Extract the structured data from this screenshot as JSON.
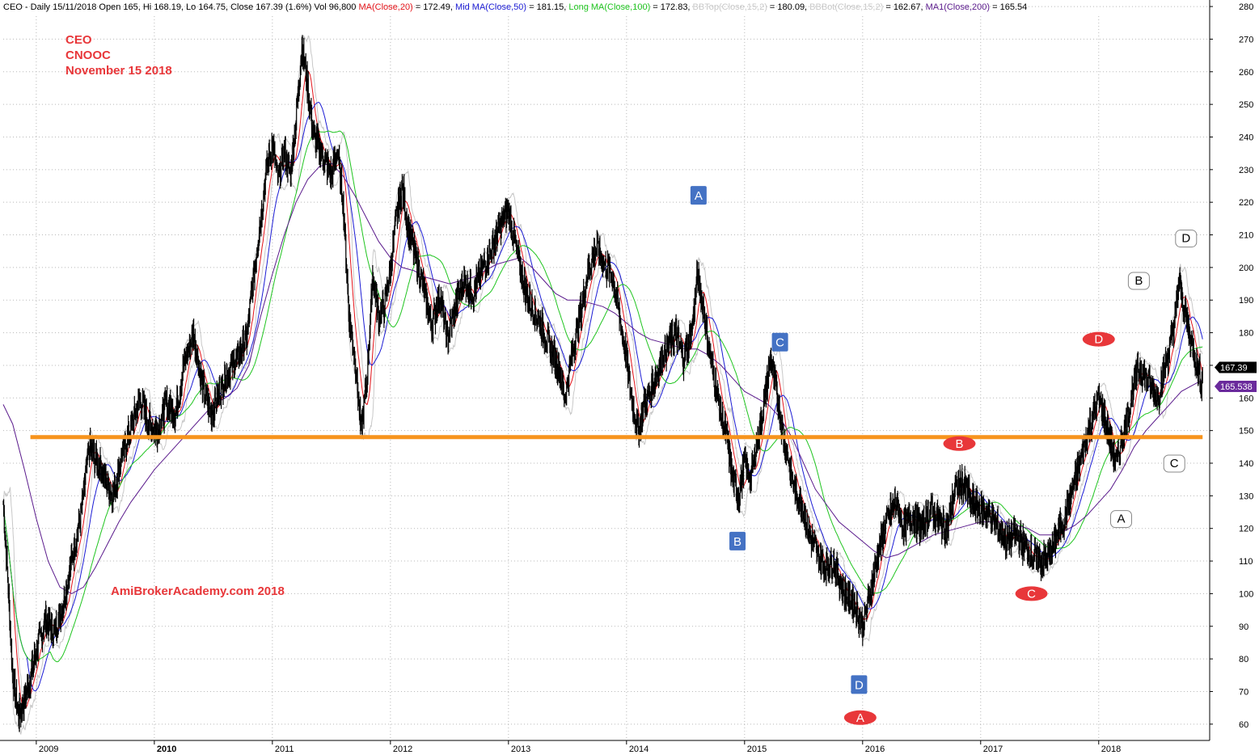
{
  "chart_data": {
    "type": "candlestick",
    "header": {
      "prefix": "CEO - Daily 15/11/2018 Open 165, Hi 168.19, Lo 164.75, Close 167.39 (1.6%) Vol 96,800 ",
      "ma20_label": "MA(Close,20)",
      "ma20_value": " = 172.49, ",
      "ma50_label": "Mid MA(Close,50)",
      "ma50_value": " = 181.15, ",
      "ma100_label": "Long MA(Close,100)",
      "ma100_value": " = 172.83, ",
      "bbtop_label": "BBTop(Close,15,2)",
      "bbtop_value": " = 180.09, ",
      "bbbot_label": "BBBot(Close,15,2)",
      "bbbot_value": " = 162.67, ",
      "ma200_label": "MA1(Close,200)",
      "ma200_value": " = 165.54"
    },
    "annotations": {
      "symbol": "CEO",
      "company": "CNOOC",
      "date": "November 15 2018",
      "watermark": "AmiBrokerAcademy.com  2018"
    },
    "ohlc": {
      "open": 165,
      "high": 168.19,
      "low": 164.75,
      "close": 167.39,
      "change_pct": 1.6,
      "volume": 96800
    },
    "y_axis": {
      "min": 55,
      "max": 282,
      "ticks": [
        60,
        70,
        80,
        90,
        100,
        110,
        120,
        130,
        140,
        150,
        160,
        170,
        180,
        190,
        200,
        210,
        220,
        230,
        240,
        250,
        260,
        270,
        280
      ]
    },
    "x_axis": {
      "start": 2008.72,
      "end": 2018.94,
      "years": [
        {
          "label": "2009",
          "value": 2009.0
        },
        {
          "label": "2010",
          "value": 2010.0
        },
        {
          "label": "2011",
          "value": 2011.0
        },
        {
          "label": "2012",
          "value": 2012.0
        },
        {
          "label": "2013",
          "value": 2013.0
        },
        {
          "label": "2014",
          "value": 2014.0
        },
        {
          "label": "2015",
          "value": 2015.0
        },
        {
          "label": "2016",
          "value": 2016.0
        },
        {
          "label": "2017",
          "value": 2017.0
        },
        {
          "label": "2018",
          "value": 2018.0
        }
      ]
    },
    "price_path": [
      [
        2008.72,
        128
      ],
      [
        2008.75,
        110
      ],
      [
        2008.8,
        75
      ],
      [
        2008.85,
        62
      ],
      [
        2008.92,
        70
      ],
      [
        2009.0,
        82
      ],
      [
        2009.08,
        92
      ],
      [
        2009.15,
        88
      ],
      [
        2009.22,
        96
      ],
      [
        2009.3,
        110
      ],
      [
        2009.38,
        125
      ],
      [
        2009.45,
        145
      ],
      [
        2009.55,
        138
      ],
      [
        2009.65,
        130
      ],
      [
        2009.72,
        142
      ],
      [
        2009.8,
        150
      ],
      [
        2009.88,
        160
      ],
      [
        2009.95,
        152
      ],
      [
        2010.03,
        150
      ],
      [
        2010.1,
        158
      ],
      [
        2010.18,
        155
      ],
      [
        2010.25,
        170
      ],
      [
        2010.33,
        180
      ],
      [
        2010.4,
        165
      ],
      [
        2010.48,
        155
      ],
      [
        2010.55,
        162
      ],
      [
        2010.62,
        168
      ],
      [
        2010.7,
        172
      ],
      [
        2010.78,
        178
      ],
      [
        2010.85,
        200
      ],
      [
        2010.9,
        215
      ],
      [
        2010.95,
        230
      ],
      [
        2011.0,
        238
      ],
      [
        2011.05,
        226
      ],
      [
        2011.1,
        235
      ],
      [
        2011.15,
        228
      ],
      [
        2011.2,
        245
      ],
      [
        2011.25,
        268
      ],
      [
        2011.3,
        255
      ],
      [
        2011.35,
        240
      ],
      [
        2011.42,
        235
      ],
      [
        2011.5,
        228
      ],
      [
        2011.55,
        236
      ],
      [
        2011.6,
        220
      ],
      [
        2011.65,
        185
      ],
      [
        2011.7,
        172
      ],
      [
        2011.75,
        150
      ],
      [
        2011.8,
        165
      ],
      [
        2011.85,
        198
      ],
      [
        2011.9,
        185
      ],
      [
        2011.95,
        188
      ],
      [
        2012.0,
        200
      ],
      [
        2012.05,
        215
      ],
      [
        2012.1,
        225
      ],
      [
        2012.15,
        212
      ],
      [
        2012.2,
        205
      ],
      [
        2012.25,
        198
      ],
      [
        2012.3,
        190
      ],
      [
        2012.35,
        182
      ],
      [
        2012.42,
        192
      ],
      [
        2012.48,
        178
      ],
      [
        2012.55,
        188
      ],
      [
        2012.62,
        196
      ],
      [
        2012.7,
        192
      ],
      [
        2012.78,
        200
      ],
      [
        2012.85,
        205
      ],
      [
        2012.92,
        212
      ],
      [
        2012.96,
        215
      ],
      [
        2013.0,
        218
      ],
      [
        2013.05,
        208
      ],
      [
        2013.1,
        200
      ],
      [
        2013.15,
        192
      ],
      [
        2013.2,
        188
      ],
      [
        2013.28,
        182
      ],
      [
        2013.35,
        175
      ],
      [
        2013.42,
        170
      ],
      [
        2013.48,
        160
      ],
      [
        2013.55,
        176
      ],
      [
        2013.62,
        188
      ],
      [
        2013.68,
        200
      ],
      [
        2013.75,
        206
      ],
      [
        2013.82,
        200
      ],
      [
        2013.88,
        198
      ],
      [
        2013.94,
        185
      ],
      [
        2014.0,
        172
      ],
      [
        2014.05,
        158
      ],
      [
        2014.1,
        150
      ],
      [
        2014.15,
        158
      ],
      [
        2014.2,
        162
      ],
      [
        2014.28,
        170
      ],
      [
        2014.35,
        176
      ],
      [
        2014.42,
        180
      ],
      [
        2014.48,
        172
      ],
      [
        2014.55,
        180
      ],
      [
        2014.6,
        197
      ],
      [
        2014.65,
        188
      ],
      [
        2014.7,
        175
      ],
      [
        2014.75,
        165
      ],
      [
        2014.8,
        155
      ],
      [
        2014.85,
        148
      ],
      [
        2014.9,
        135
      ],
      [
        2014.95,
        130
      ],
      [
        2015.0,
        140
      ],
      [
        2015.05,
        135
      ],
      [
        2015.1,
        145
      ],
      [
        2015.15,
        155
      ],
      [
        2015.22,
        172
      ],
      [
        2015.28,
        160
      ],
      [
        2015.33,
        148
      ],
      [
        2015.38,
        140
      ],
      [
        2015.42,
        132
      ],
      [
        2015.48,
        128
      ],
      [
        2015.55,
        118
      ],
      [
        2015.62,
        112
      ],
      [
        2015.68,
        108
      ],
      [
        2015.75,
        110
      ],
      [
        2015.8,
        105
      ],
      [
        2015.85,
        100
      ],
      [
        2015.9,
        98
      ],
      [
        2015.95,
        95
      ],
      [
        2016.0,
        90
      ],
      [
        2016.05,
        98
      ],
      [
        2016.12,
        110
      ],
      [
        2016.2,
        122
      ],
      [
        2016.28,
        128
      ],
      [
        2016.35,
        120
      ],
      [
        2016.42,
        124
      ],
      [
        2016.5,
        120
      ],
      [
        2016.58,
        126
      ],
      [
        2016.65,
        122
      ],
      [
        2016.72,
        120
      ],
      [
        2016.78,
        132
      ],
      [
        2016.85,
        134
      ],
      [
        2016.92,
        128
      ],
      [
        2017.0,
        126
      ],
      [
        2017.08,
        124
      ],
      [
        2017.15,
        120
      ],
      [
        2017.22,
        116
      ],
      [
        2017.3,
        118
      ],
      [
        2017.38,
        114
      ],
      [
        2017.45,
        111
      ],
      [
        2017.52,
        110
      ],
      [
        2017.58,
        112
      ],
      [
        2017.65,
        118
      ],
      [
        2017.72,
        124
      ],
      [
        2017.78,
        132
      ],
      [
        2017.84,
        140
      ],
      [
        2017.9,
        148
      ],
      [
        2017.95,
        155
      ],
      [
        2018.0,
        160
      ],
      [
        2018.05,
        154
      ],
      [
        2018.1,
        146
      ],
      [
        2018.15,
        140
      ],
      [
        2018.2,
        148
      ],
      [
        2018.25,
        155
      ],
      [
        2018.3,
        165
      ],
      [
        2018.35,
        170
      ],
      [
        2018.4,
        166
      ],
      [
        2018.45,
        163
      ],
      [
        2018.5,
        160
      ],
      [
        2018.55,
        168
      ],
      [
        2018.6,
        175
      ],
      [
        2018.65,
        185
      ],
      [
        2018.68,
        196
      ],
      [
        2018.72,
        188
      ],
      [
        2018.78,
        178
      ],
      [
        2018.83,
        170
      ],
      [
        2018.87,
        165
      ],
      [
        2018.88,
        167.39
      ]
    ],
    "ma200_path": [
      [
        2008.72,
        158
      ],
      [
        2008.8,
        152
      ],
      [
        2008.9,
        138
      ],
      [
        2009.0,
        123
      ],
      [
        2009.1,
        110
      ],
      [
        2009.2,
        102
      ],
      [
        2009.3,
        100
      ],
      [
        2009.4,
        102
      ],
      [
        2009.5,
        108
      ],
      [
        2009.6,
        115
      ],
      [
        2009.7,
        122
      ],
      [
        2009.8,
        128
      ],
      [
        2009.9,
        133
      ],
      [
        2010.0,
        138
      ],
      [
        2010.1,
        142
      ],
      [
        2010.2,
        146
      ],
      [
        2010.3,
        150
      ],
      [
        2010.4,
        154
      ],
      [
        2010.5,
        158
      ],
      [
        2010.6,
        160
      ],
      [
        2010.7,
        163
      ],
      [
        2010.8,
        170
      ],
      [
        2010.9,
        185
      ],
      [
        2011.0,
        198
      ],
      [
        2011.1,
        210
      ],
      [
        2011.2,
        220
      ],
      [
        2011.3,
        227
      ],
      [
        2011.4,
        231
      ],
      [
        2011.5,
        232
      ],
      [
        2011.6,
        228
      ],
      [
        2011.7,
        222
      ],
      [
        2011.8,
        215
      ],
      [
        2011.9,
        208
      ],
      [
        2012.0,
        203
      ],
      [
        2012.1,
        200
      ],
      [
        2012.2,
        199
      ],
      [
        2012.3,
        197
      ],
      [
        2012.4,
        196
      ],
      [
        2012.5,
        195
      ],
      [
        2012.6,
        196
      ],
      [
        2012.7,
        197
      ],
      [
        2012.8,
        199
      ],
      [
        2012.9,
        201
      ],
      [
        2013.0,
        202
      ],
      [
        2013.1,
        203
      ],
      [
        2013.2,
        200
      ],
      [
        2013.3,
        196
      ],
      [
        2013.4,
        192
      ],
      [
        2013.5,
        190
      ],
      [
        2013.6,
        190
      ],
      [
        2013.7,
        189
      ],
      [
        2013.8,
        188
      ],
      [
        2013.9,
        186
      ],
      [
        2014.0,
        183
      ],
      [
        2014.1,
        180
      ],
      [
        2014.2,
        178
      ],
      [
        2014.3,
        177
      ],
      [
        2014.4,
        176
      ],
      [
        2014.5,
        175
      ],
      [
        2014.6,
        175
      ],
      [
        2014.7,
        173
      ],
      [
        2014.8,
        170
      ],
      [
        2014.9,
        166
      ],
      [
        2015.0,
        162
      ],
      [
        2015.1,
        160
      ],
      [
        2015.2,
        158
      ],
      [
        2015.3,
        154
      ],
      [
        2015.4,
        148
      ],
      [
        2015.5,
        140
      ],
      [
        2015.6,
        132
      ],
      [
        2015.7,
        127
      ],
      [
        2015.8,
        122
      ],
      [
        2015.9,
        119
      ],
      [
        2016.0,
        116
      ],
      [
        2016.1,
        113
      ],
      [
        2016.2,
        111
      ],
      [
        2016.3,
        112
      ],
      [
        2016.4,
        114
      ],
      [
        2016.5,
        116
      ],
      [
        2016.6,
        118
      ],
      [
        2016.7,
        119
      ],
      [
        2016.8,
        120
      ],
      [
        2016.9,
        121
      ],
      [
        2017.0,
        122
      ],
      [
        2017.1,
        122
      ],
      [
        2017.2,
        122
      ],
      [
        2017.3,
        121
      ],
      [
        2017.4,
        120
      ],
      [
        2017.5,
        118
      ],
      [
        2017.6,
        118
      ],
      [
        2017.7,
        119
      ],
      [
        2017.8,
        121
      ],
      [
        2017.9,
        124
      ],
      [
        2018.0,
        128
      ],
      [
        2018.1,
        132
      ],
      [
        2018.2,
        138
      ],
      [
        2018.3,
        145
      ],
      [
        2018.4,
        150
      ],
      [
        2018.5,
        154
      ],
      [
        2018.6,
        158
      ],
      [
        2018.7,
        162
      ],
      [
        2018.8,
        164
      ],
      [
        2018.88,
        165.54
      ]
    ],
    "support_line": {
      "value": 148,
      "from": 2008.95,
      "to": 2018.88,
      "color": "#f7941d"
    },
    "price_tags": [
      {
        "label": "167.39",
        "value": 167.39,
        "bg": "#000000",
        "fg": "#ffffff"
      },
      {
        "label": "165.538",
        "value": 165.538,
        "bg": "#6a2a9c",
        "fg": "#ffffff"
      }
    ],
    "markers": [
      {
        "label": "A",
        "style": "blue",
        "x": 2014.61,
        "y": 222
      },
      {
        "label": "B",
        "style": "blue",
        "x": 2014.94,
        "y": 116
      },
      {
        "label": "C",
        "style": "blue",
        "x": 2015.3,
        "y": 177
      },
      {
        "label": "D",
        "style": "blue",
        "x": 2015.97,
        "y": 72
      },
      {
        "label": "A",
        "style": "red",
        "x": 2015.98,
        "y": 62
      },
      {
        "label": "B",
        "style": "red",
        "x": 2016.82,
        "y": 146
      },
      {
        "label": "C",
        "style": "red",
        "x": 2017.43,
        "y": 100
      },
      {
        "label": "D",
        "style": "red",
        "x": 2018.0,
        "y": 178
      },
      {
        "label": "A",
        "style": "white",
        "x": 2018.19,
        "y": 123
      },
      {
        "label": "B",
        "style": "white",
        "x": 2018.34,
        "y": 196
      },
      {
        "label": "C",
        "style": "white",
        "x": 2018.64,
        "y": 140
      },
      {
        "label": "D",
        "style": "white",
        "x": 2018.74,
        "y": 209
      }
    ],
    "colors": {
      "price": "#000000",
      "ma20": "#e4141a",
      "ma50": "#1b1bd4",
      "ma100": "#1fc41f",
      "ma200": "#5a1a8c",
      "bollinger": "#c8c8c8",
      "annotation": "#e8373a",
      "blue_marker": "#4472c4",
      "red_marker": "#e8373a",
      "grid": "#b8b8b8"
    }
  }
}
